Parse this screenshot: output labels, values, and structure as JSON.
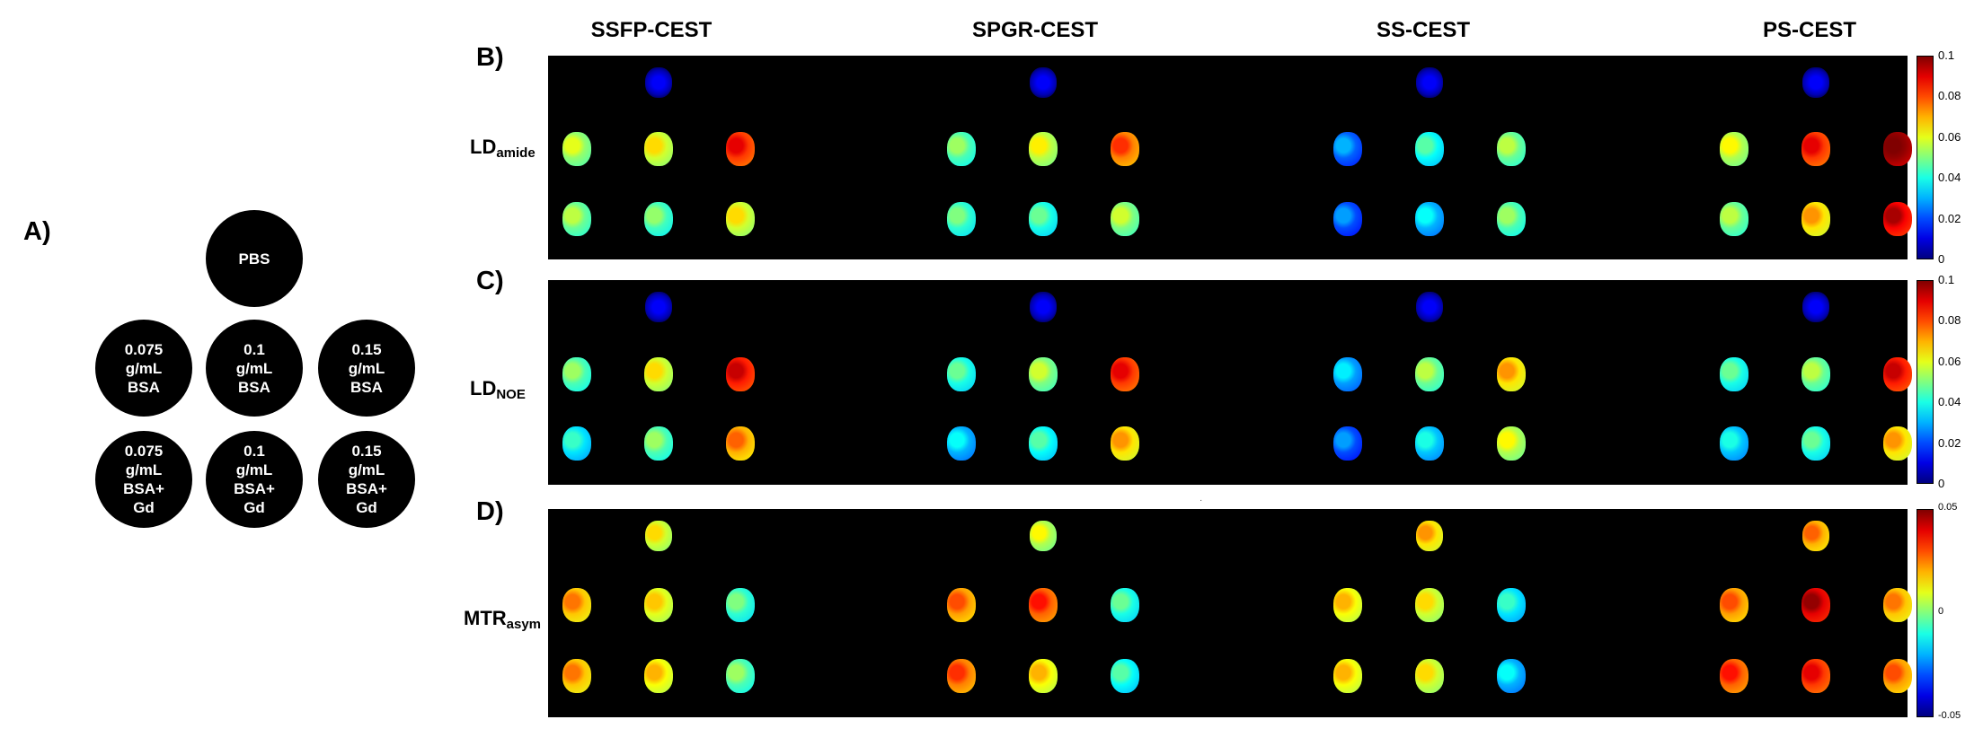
{
  "panel_letters": {
    "a": "A)",
    "b": "B)",
    "c": "C)",
    "d": "D)"
  },
  "column_headers": [
    "SSFP-CEST",
    "SPGR-CEST",
    "SS-CEST",
    "PS-CEST"
  ],
  "phantom_layout": {
    "top": {
      "label": "PBS"
    },
    "middle_row": [
      {
        "label": "0.075\ng/mL\nBSA"
      },
      {
        "label": "0.1\ng/mL\nBSA"
      },
      {
        "label": "0.15\ng/mL\nBSA"
      }
    ],
    "bottom_row": [
      {
        "label": "0.075\ng/mL\nBSA+\nGd"
      },
      {
        "label": "0.1\ng/mL\nBSA+\nGd"
      },
      {
        "label": "0.15\ng/mL\nBSA+\nGd"
      }
    ]
  },
  "rows": [
    {
      "letter_key": "b",
      "label_main": "LD",
      "label_sub": "amide",
      "colormap": "jet",
      "scale": {
        "min": 0,
        "max": 0.1,
        "ticks": [
          "0.1",
          "0.08",
          "0.06",
          "0.04",
          "0.02",
          "0"
        ]
      },
      "vial_values": [
        [
          0.005,
          0.052,
          0.058,
          0.082,
          0.048,
          0.044,
          0.058
        ],
        [
          0.005,
          0.045,
          0.056,
          0.075,
          0.042,
          0.04,
          0.05
        ],
        [
          0.005,
          0.022,
          0.038,
          0.048,
          0.02,
          0.03,
          0.045
        ],
        [
          0.005,
          0.055,
          0.082,
          0.098,
          0.048,
          0.065,
          0.088
        ]
      ]
    },
    {
      "letter_key": "c",
      "label_main": "LD",
      "label_sub": "NOE",
      "colormap": "jet",
      "scale": {
        "min": 0,
        "max": 0.1,
        "ticks": [
          "0.1",
          "0.08",
          "0.06",
          "0.04",
          "0.02",
          "0"
        ]
      },
      "vial_values": [
        [
          0.005,
          0.045,
          0.058,
          0.085,
          0.035,
          0.045,
          0.07
        ],
        [
          0.005,
          0.04,
          0.05,
          0.082,
          0.03,
          0.038,
          0.065
        ],
        [
          0.005,
          0.028,
          0.048,
          0.065,
          0.02,
          0.032,
          0.055
        ],
        [
          0.002,
          0.04,
          0.048,
          0.085,
          0.032,
          0.04,
          0.065
        ]
      ]
    },
    {
      "letter_key": "d",
      "label_main": "MTR",
      "label_sub": "asym",
      "colormap": "jet",
      "scale": {
        "min": -0.05,
        "max": 0.05,
        "ticks": [
          "0.05",
          "0",
          "-0.05"
        ]
      },
      "vial_values": [
        [
          0.008,
          0.018,
          0.01,
          -0.008,
          0.018,
          0.012,
          -0.005
        ],
        [
          0.005,
          0.022,
          0.028,
          -0.01,
          0.025,
          0.012,
          -0.012
        ],
        [
          0.015,
          0.012,
          0.008,
          -0.015,
          0.012,
          0.008,
          -0.02
        ],
        [
          0.02,
          0.022,
          0.04,
          0.018,
          0.028,
          0.032,
          0.022
        ]
      ]
    }
  ],
  "footnote_mark": "·"
}
